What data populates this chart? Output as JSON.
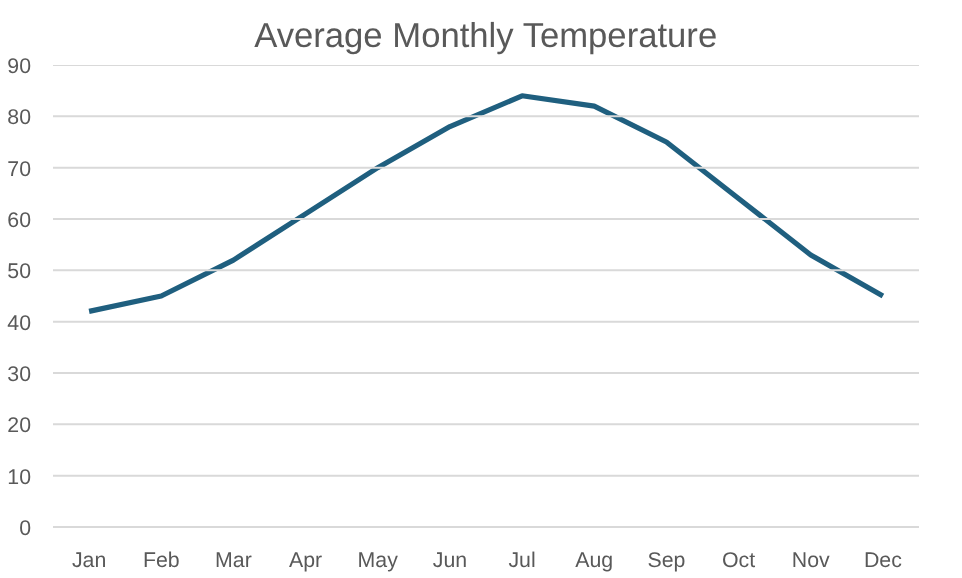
{
  "chart_data": {
    "type": "line",
    "title": "Average Monthly Temperature",
    "categories": [
      "Jan",
      "Feb",
      "Mar",
      "Apr",
      "May",
      "Jun",
      "Jul",
      "Aug",
      "Sep",
      "Oct",
      "Nov",
      "Dec"
    ],
    "series": [
      {
        "color": "#1f5f7f",
        "values": [
          42,
          45,
          52,
          61,
          70,
          78,
          84,
          82,
          75,
          64,
          53,
          45
        ]
      }
    ],
    "ylim": [
      0,
      90
    ],
    "yticks": [
      0,
      10,
      20,
      30,
      40,
      50,
      60,
      70,
      80,
      90
    ],
    "grid": "y",
    "marker": "none",
    "line_style": "solid"
  }
}
